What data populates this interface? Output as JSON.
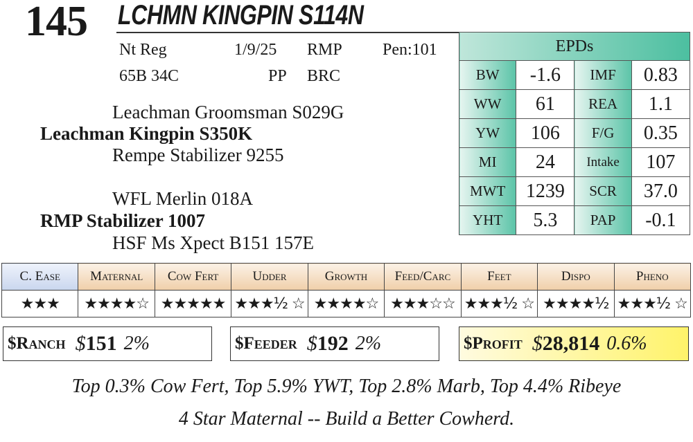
{
  "header": {
    "lot_number": "145",
    "animal_name": "LCHMN KINGPIN S114N"
  },
  "info": {
    "reg": "Nt Reg",
    "date": "1/9/25",
    "breeder": "RMP",
    "pen": "Pen:101",
    "ids": "65B 34C",
    "pp": "PP",
    "brc": "BRC"
  },
  "pedigree": {
    "sire_sire": "Leachman Groomsman S029G",
    "sire": "Leachman Kingpin S350K",
    "sire_dam": "Rempe Stabilizer 9255",
    "dam_sire": "WFL Merlin 018A",
    "dam": "RMP Stabilizer 1007",
    "dam_dam": "HSF Ms  Xpect B151 157E"
  },
  "epds": {
    "title": "EPDs",
    "rows": [
      {
        "l1": "BW",
        "v1": "-1.6",
        "l2": "IMF",
        "v2": "0.83"
      },
      {
        "l1": "WW",
        "v1": "61",
        "l2": "REA",
        "v2": "1.1"
      },
      {
        "l1": "YW",
        "v1": "106",
        "l2": "F/G",
        "v2": "0.35"
      },
      {
        "l1": "MI",
        "v1": "24",
        "l2": "Intake",
        "v2": "107"
      },
      {
        "l1": "MWT",
        "v1": "1239",
        "l2": "SCR",
        "v2": "37.0"
      },
      {
        "l1": "YHT",
        "v1": "5.3",
        "l2": "PAP",
        "v2": "-0.1"
      }
    ]
  },
  "ratings": {
    "categories": [
      "C. Ease",
      "Maternal",
      "Cow Fert",
      "Udder",
      "Growth",
      "Feed/Carc",
      "Feet",
      "Dispo",
      "Pheno"
    ],
    "stars": [
      "★★★",
      "★★★★☆",
      "★★★★★",
      "★★★½ ☆",
      "★★★★☆",
      "★★★☆☆",
      "★★★½ ☆",
      "★★★★½",
      "★★★½ ☆"
    ]
  },
  "indexes": {
    "ranch": {
      "label": "$Ranch",
      "symbol": "$",
      "value": "151",
      "pct": "2%"
    },
    "feeder": {
      "label": "$Feeder",
      "symbol": "$",
      "value": "192",
      "pct": "2%"
    },
    "profit": {
      "label": "$Profit",
      "symbol": "$",
      "value": "28,814",
      "pct": "0.6%"
    }
  },
  "footer": {
    "line1": "Top 0.3% Cow Fert, Top 5.9% YWT, Top 2.8% Marb, Top 4.4% Ribeye",
    "line2": "4 Star Maternal -- Build a Better Cowherd."
  },
  "colors": {
    "epd_green": "#4cbfa0",
    "category_tan": "#f0cfa9",
    "category_blue": "#c9d6ee",
    "profit_yellow": "#fff36a"
  }
}
